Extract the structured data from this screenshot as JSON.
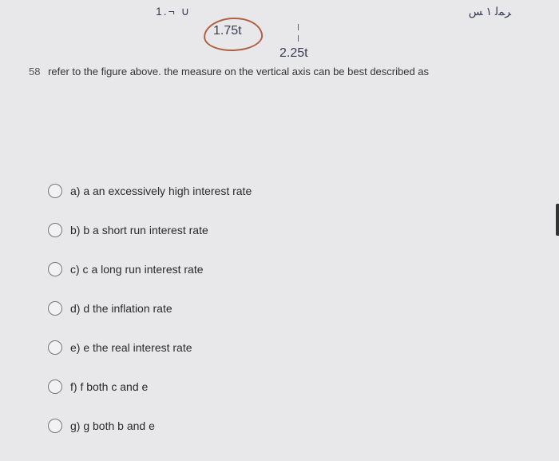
{
  "annotations": {
    "top_left": "1.¬ ∪",
    "top_right": "ﺮﻤﻟ  ١ ﺲ",
    "circled_value": "1.75t",
    "secondary_value": "2.25t",
    "circle_border_color": "#b06040",
    "ink_color": "#3a3a55"
  },
  "question": {
    "number": "58",
    "text": "refer to the figure above.  the measure on the vertical axis can be best described as"
  },
  "options": [
    {
      "letter": "a",
      "sub": "a",
      "text": "an excessively high interest rate"
    },
    {
      "letter": "b",
      "sub": "b",
      "text": "a short run interest rate"
    },
    {
      "letter": "c",
      "sub": "c",
      "text": "a long run interest rate"
    },
    {
      "letter": "d",
      "sub": "d",
      "text": "the inflation rate"
    },
    {
      "letter": "e",
      "sub": "e",
      "text": "the real interest rate"
    },
    {
      "letter": "f",
      "sub": "f",
      "text": "both c and e"
    },
    {
      "letter": "g",
      "sub": "g",
      "text": "both b and e"
    }
  ],
  "colors": {
    "page_bg": "#e8e8ea",
    "text": "#2a2a2a",
    "radio_border": "#777"
  }
}
